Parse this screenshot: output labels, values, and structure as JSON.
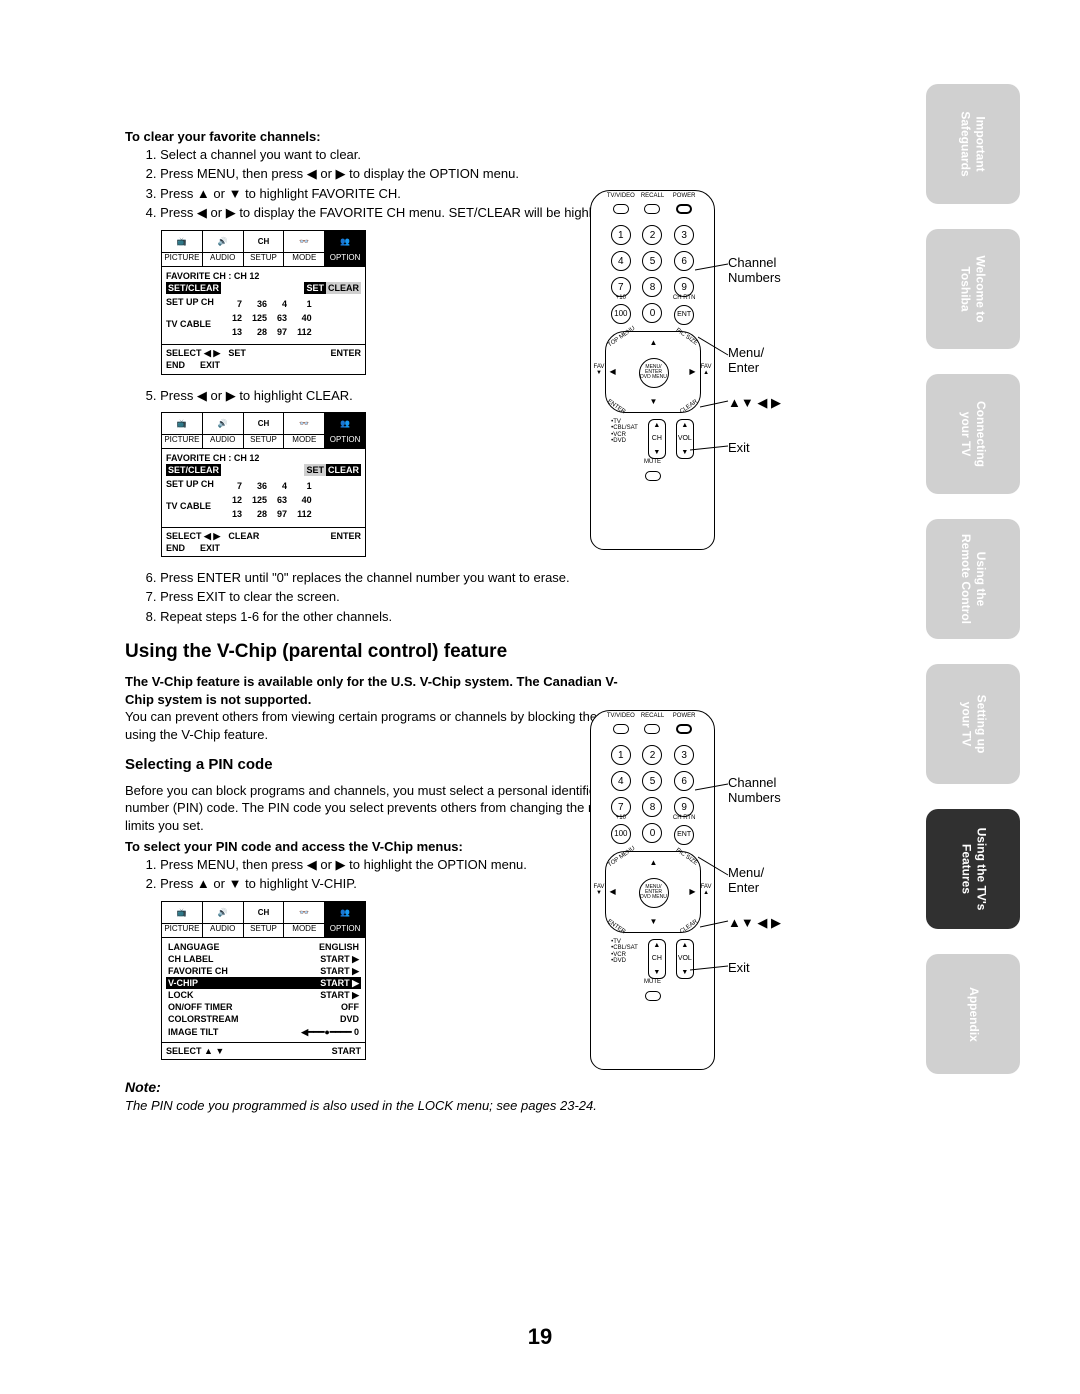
{
  "page_number": "19",
  "side_tabs": [
    {
      "l1": "Important",
      "l2": "Safeguards",
      "active": false
    },
    {
      "l1": "Welcome to",
      "l2": "Toshiba",
      "active": false
    },
    {
      "l1": "Connecting",
      "l2": "your TV",
      "active": false
    },
    {
      "l1": "Using the",
      "l2": "Remote Control",
      "active": false
    },
    {
      "l1": "Setting up",
      "l2": "your TV",
      "active": false
    },
    {
      "l1": "Using the TV's",
      "l2": "Features",
      "active": true
    },
    {
      "l1": "Appendix",
      "l2": "",
      "active": false
    }
  ],
  "clear": {
    "heading": "To clear your favorite channels:",
    "steps_a": [
      "Select a channel you want to clear.",
      "Press MENU, then press ◀ or ▶ to display the OPTION menu.",
      "Press ▲ or ▼ to highlight FAVORITE CH.",
      "Press ◀ or ▶ to display the FAVORITE CH menu. SET/CLEAR will be highlighted."
    ],
    "step5": "Press ◀ or ▶ to highlight CLEAR.",
    "steps_b": [
      "Press ENTER until \"0\" replaces the channel number you want to erase.",
      "Press EXIT to clear the screen.",
      "Repeat steps 1-6 for the other channels."
    ]
  },
  "osd_tabs": [
    "PICTURE",
    "AUDIO",
    "SETUP",
    "MODE",
    "OPTION"
  ],
  "osd1": {
    "title": "FAVORITE CH : CH 12",
    "setclear_left": "SET/CLEAR",
    "set": "SET",
    "clear": "CLEAR",
    "setupch": "SET UP CH",
    "tvcable": "TV CABLE",
    "grid": [
      [
        "7",
        "36",
        "4",
        "1"
      ],
      [
        "12",
        "125",
        "63",
        "40"
      ],
      [
        "13",
        "28",
        "97",
        "112"
      ]
    ],
    "foot": [
      "SELECT  ◀ ▶",
      "SET",
      "ENTER",
      "END",
      "EXIT"
    ]
  },
  "osd2": {
    "foot": [
      "SELECT  ◀ ▶",
      "CLEAR",
      "ENTER",
      "END",
      "EXIT"
    ]
  },
  "vchip": {
    "heading": "Using the V-Chip (parental control) feature",
    "para_bold": "The V-Chip feature is available only for the U.S. V-Chip system. The Canadian V-Chip system is not supported.",
    "para": "You can prevent others from viewing certain programs or channels by blocking them using the V-Chip feature.",
    "sub": "Selecting a PIN code",
    "sub_para": "Before you can block programs and channels, you must select a personal identification number (PIN) code. The PIN code you select prevents others from changing the rating limits you set.",
    "steps_head": "To select your PIN code and access the V-Chip menus:",
    "steps": [
      "Press MENU, then press ◀ or ▶ to highlight the OPTION menu.",
      "Press ▲ or ▼ to highlight V-CHIP."
    ]
  },
  "osd3": {
    "rows": [
      [
        "LANGUAGE",
        "ENGLISH"
      ],
      [
        "CH LABEL",
        "START  ▶"
      ],
      [
        "FAVORITE CH",
        "START  ▶"
      ],
      [
        "V-CHIP",
        "START  ▶"
      ],
      [
        "LOCK",
        "START  ▶"
      ],
      [
        "ON/OFF TIMER",
        "OFF"
      ],
      [
        "COLORSTREAM",
        "DVD"
      ],
      [
        "IMAGE TILT",
        "◀━━━●━━━━ 0"
      ]
    ],
    "hl_index": 3,
    "foot": [
      "SELECT   ▲ ▼",
      "START"
    ]
  },
  "note": {
    "label": "Note:",
    "body": "The PIN code you programmed is also used in the LOCK menu; see pages 23-24."
  },
  "remote": {
    "toprow": [
      "TV/VIDEO",
      "RECALL",
      "POWER"
    ],
    "nums": [
      "1",
      "2",
      "3",
      "4",
      "5",
      "6",
      "7",
      "8",
      "9"
    ],
    "plus10": "+10",
    "zero": "0",
    "ent": "ENT",
    "chrtn": "CH RTN",
    "dpad_center": "MENU/\nENTER\nDVD MENU",
    "dpad_tl": "TOP MENU",
    "dpad_tr": "PIC SIZE",
    "dpad_bl": "ENTER",
    "dpad_br": "CLEAR",
    "fav": "FAV",
    "mode_list": [
      "TV",
      "CBL/SAT",
      "VCR",
      "DVD"
    ],
    "ch": "CH",
    "vol": "VOL",
    "mute": "MUTE"
  },
  "callouts": {
    "channel": "Channel\nNumbers",
    "menu": "Menu/\nEnter",
    "arrows": "▲▼ ◀ ▶",
    "exit": "Exit"
  }
}
